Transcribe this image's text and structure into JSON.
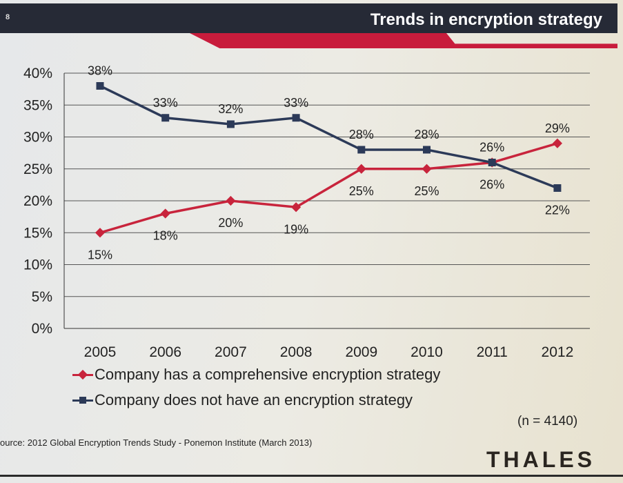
{
  "slide": {
    "page_number": "8",
    "title": "Trends in encryption strategy",
    "sample_size": "(n = 4140)",
    "source": "ource: 2012 Global Encryption Trends Study - Ponemon Institute (March 2013)",
    "logo": "THALES"
  },
  "chart_data": {
    "type": "line",
    "categories": [
      "2005",
      "2006",
      "2007",
      "2008",
      "2009",
      "2010",
      "2011",
      "2012"
    ],
    "ylim": [
      0,
      40
    ],
    "yticks": [
      "0%",
      "5%",
      "10%",
      "15%",
      "20%",
      "25%",
      "30%",
      "35%",
      "40%"
    ],
    "grid": true,
    "legend_placement": "bottom",
    "series": [
      {
        "name": "Company has a comprehensive encryption strategy",
        "color": "#c8243c",
        "marker": "diamond",
        "values": [
          15,
          18,
          20,
          19,
          25,
          25,
          26,
          29
        ],
        "labels": [
          "15%",
          "18%",
          "20%",
          "19%",
          "25%",
          "25%",
          "26%",
          "29%"
        ]
      },
      {
        "name": "Company does not have an encryption strategy",
        "color": "#2c3a58",
        "marker": "square",
        "values": [
          38,
          33,
          32,
          33,
          28,
          28,
          26,
          22
        ],
        "labels": [
          "38%",
          "33%",
          "32%",
          "33%",
          "28%",
          "28%",
          "26%",
          "22%"
        ]
      }
    ]
  }
}
